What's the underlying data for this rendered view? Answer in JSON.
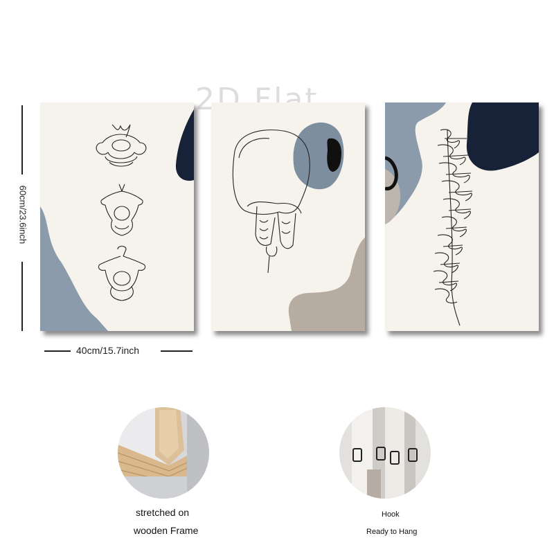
{
  "watermark": "2D Flat",
  "dimensions": {
    "height_label": "60cm/23.6inch",
    "width_label": "40cm/15.7inch"
  },
  "panels": [
    {
      "subject": "vertebrae-line-art"
    },
    {
      "subject": "skull-line-art"
    },
    {
      "subject": "spine-line-art"
    }
  ],
  "features": [
    {
      "caption_line1": "stretched on",
      "caption_line2": "wooden Frame"
    },
    {
      "caption_line1": "Hook",
      "caption_line2": "Ready to Hang"
    }
  ],
  "colors": {
    "canvas": "#f6f3ec",
    "slate_blue": "#8c9bab",
    "navy": "#172238",
    "taupe": "#b7aca2"
  }
}
